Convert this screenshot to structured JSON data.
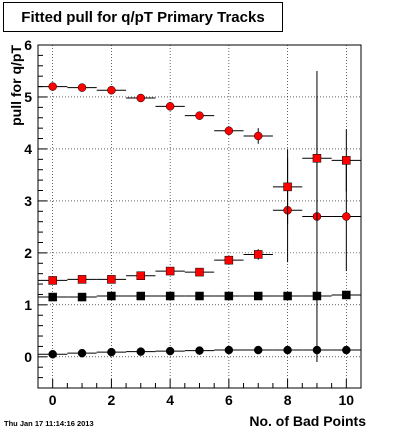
{
  "chart_data": {
    "type": "scatter",
    "title": "Fitted pull for q/pT Primary Tracks",
    "xlabel": "No. of Bad Points",
    "ylabel": "pull for q/pT",
    "xlim": [
      -0.5,
      10.5
    ],
    "ylim": [
      -0.6,
      6
    ],
    "x_ticks": [
      "0",
      "2",
      "4",
      "6",
      "8",
      "10"
    ],
    "y_ticks": [
      "0",
      "1",
      "2",
      "3",
      "4",
      "5",
      "6"
    ],
    "grid": true,
    "series": [
      {
        "marker": "circle",
        "color": "#ff0000",
        "x": [
          0,
          1,
          2,
          3,
          4,
          5,
          6,
          7,
          8,
          9,
          10
        ],
        "y": [
          5.2,
          5.18,
          5.13,
          4.98,
          4.82,
          4.64,
          4.35,
          4.25,
          2.82,
          2.7,
          2.7
        ],
        "yerr": [
          0.03,
          0.03,
          0.04,
          0.05,
          0.05,
          0.05,
          0.08,
          0.15,
          1.0,
          2.8,
          1.05
        ]
      },
      {
        "marker": "square",
        "color": "#ff0000",
        "x": [
          0,
          1,
          2,
          3,
          4,
          5,
          6,
          7,
          8,
          9,
          10
        ],
        "y": [
          1.47,
          1.49,
          1.49,
          1.56,
          1.65,
          1.63,
          1.86,
          1.97,
          3.27,
          3.82,
          3.78
        ],
        "yerr": [
          0.02,
          0.02,
          0.02,
          0.03,
          0.04,
          0.04,
          0.06,
          0.1,
          0.72,
          1.2,
          0.6
        ]
      },
      {
        "marker": "square",
        "color": "#000000",
        "x": [
          0,
          1,
          2,
          3,
          4,
          5,
          6,
          7,
          8,
          9,
          10
        ],
        "y": [
          1.15,
          1.15,
          1.17,
          1.17,
          1.17,
          1.17,
          1.17,
          1.17,
          1.17,
          1.17,
          1.19
        ],
        "yerr": [
          0.01,
          0.01,
          0.01,
          0.01,
          0.01,
          0.01,
          0.01,
          0.01,
          0.02,
          0.02,
          0.02
        ]
      },
      {
        "marker": "circle",
        "color": "#000000",
        "x": [
          0,
          1,
          2,
          3,
          4,
          5,
          6,
          7,
          8,
          9,
          10
        ],
        "y": [
          0.05,
          0.07,
          0.09,
          0.1,
          0.11,
          0.12,
          0.13,
          0.13,
          0.13,
          0.13,
          0.13
        ],
        "yerr": [
          0.01,
          0.01,
          0.01,
          0.01,
          0.01,
          0.01,
          0.01,
          0.01,
          0.01,
          0.01,
          0.01
        ]
      }
    ]
  },
  "timestamp": "Thu Jan 17 11:14:16 2013"
}
